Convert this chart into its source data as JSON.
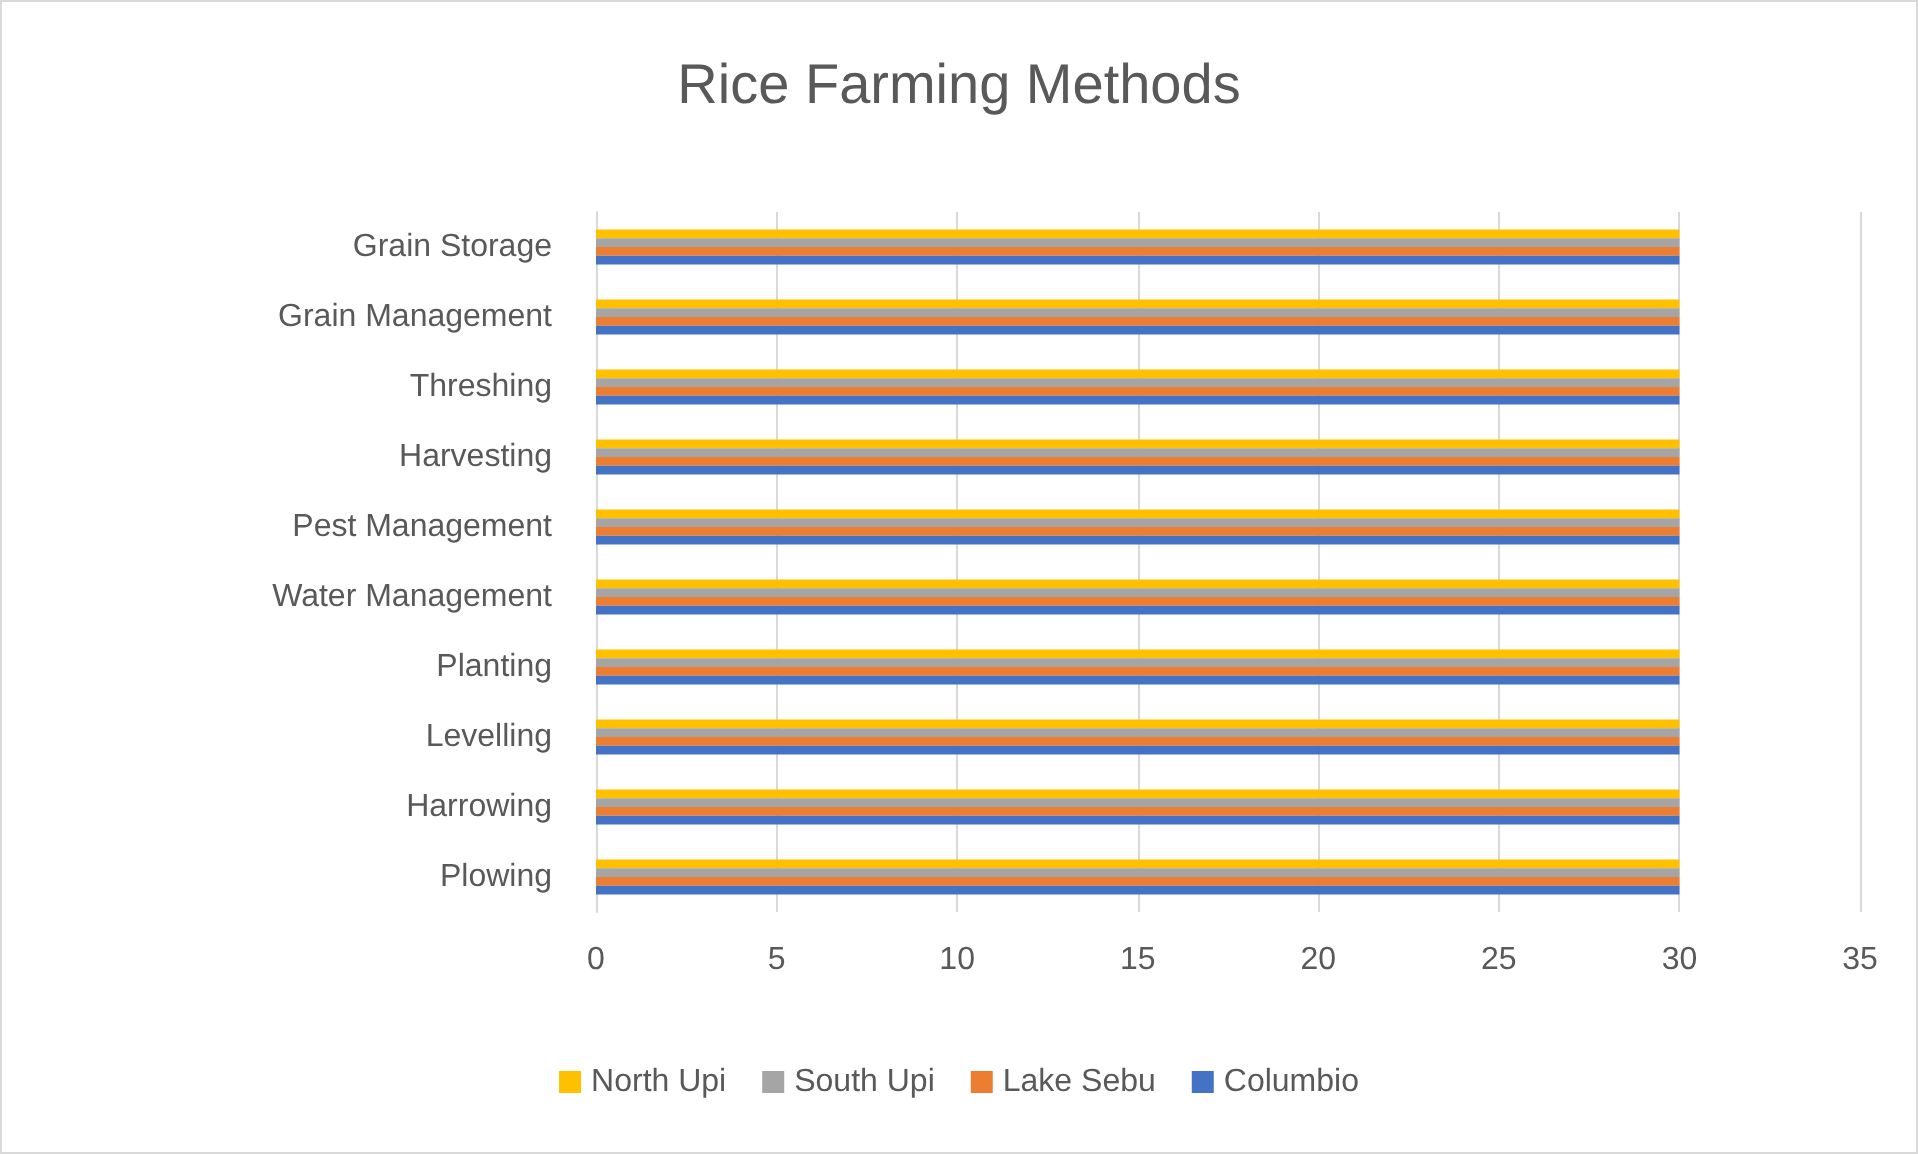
{
  "chart_data": {
    "type": "bar",
    "orientation": "horizontal",
    "title": "Rice Farming Methods",
    "categories": [
      "Grain Storage",
      "Grain Management",
      "Threshing",
      "Harvesting",
      "Pest Management",
      "Water Management",
      "Planting",
      "Levelling",
      "Harrowing",
      "Plowing"
    ],
    "series": [
      {
        "name": "North Upi",
        "color": "#ffc000",
        "values": [
          30,
          30,
          30,
          30,
          30,
          30,
          30,
          30,
          30,
          30
        ]
      },
      {
        "name": "South Upi",
        "color": "#a5a5a5",
        "values": [
          30,
          30,
          30,
          30,
          30,
          30,
          30,
          30,
          30,
          30
        ]
      },
      {
        "name": "Lake Sebu",
        "color": "#ed7d31",
        "values": [
          30,
          30,
          30,
          30,
          30,
          30,
          30,
          30,
          30,
          30
        ]
      },
      {
        "name": "Columbio",
        "color": "#4472c4",
        "values": [
          30,
          30,
          30,
          30,
          30,
          30,
          30,
          30,
          30,
          30
        ]
      }
    ],
    "xlim": [
      0,
      35
    ],
    "xticks": [
      0,
      5,
      10,
      15,
      20,
      25,
      30,
      35
    ],
    "grid": "x",
    "legend": "bottom"
  }
}
